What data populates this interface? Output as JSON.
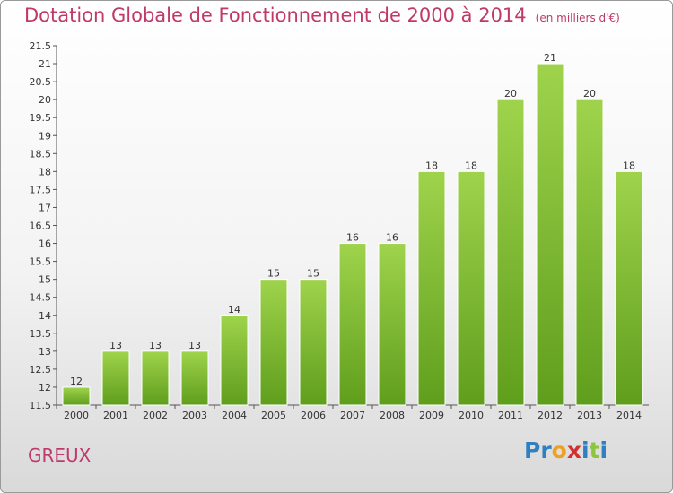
{
  "title": "Dotation Globale de Fonctionnement de 2000 à 2014",
  "subtitle": "(en milliers d'€)",
  "commune": "GREUX",
  "logo": {
    "text": "Proxiti",
    "letters": [
      {
        "ch": "P",
        "color": "#2f7fc1"
      },
      {
        "ch": "r",
        "color": "#2f7fc1"
      },
      {
        "ch": "o",
        "color": "#f0a020"
      },
      {
        "ch": "x",
        "color": "#d03030"
      },
      {
        "ch": "i",
        "color": "#2f7fc1"
      },
      {
        "ch": "t",
        "color": "#8cc63f"
      },
      {
        "ch": "i",
        "color": "#2f7fc1"
      }
    ]
  },
  "colors": {
    "bar_top": "#9fd34c",
    "bar_bottom": "#5f9e1c",
    "title": "#c0396a"
  },
  "chart_data": {
    "type": "bar",
    "title": "Dotation Globale de Fonctionnement de 2000 à 2014",
    "subtitle": "(en milliers d'€)",
    "categories": [
      "2000",
      "2001",
      "2002",
      "2003",
      "2004",
      "2005",
      "2006",
      "2007",
      "2008",
      "2009",
      "2010",
      "2011",
      "2012",
      "2013",
      "2014"
    ],
    "values": [
      12,
      13,
      13,
      13,
      14,
      15,
      15,
      16,
      16,
      18,
      18,
      20,
      21,
      20,
      18
    ],
    "ylim": [
      11.5,
      21.5
    ],
    "yticks": [
      "11.5",
      "12",
      "12.5",
      "13",
      "13.5",
      "14",
      "14.5",
      "15",
      "15.5",
      "16",
      "16.5",
      "17",
      "17.5",
      "18",
      "18.5",
      "19",
      "19.5",
      "20",
      "20.5",
      "21",
      "21.5"
    ],
    "grid": false,
    "legend": "none"
  }
}
